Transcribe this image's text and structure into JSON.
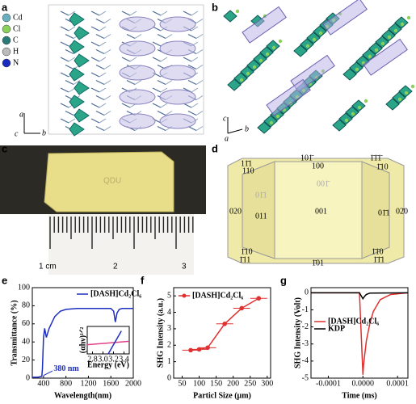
{
  "panel_labels": [
    "a",
    "b",
    "c",
    "d",
    "e",
    "f",
    "g"
  ],
  "legend_a": [
    "Cd",
    "Cl",
    "C",
    "H",
    "N"
  ],
  "axes_a": [
    "a",
    "c",
    "b"
  ],
  "axes_b": [
    "c",
    "a",
    "b"
  ],
  "photo": {
    "stamp": "QDU",
    "ruler": [
      "1 cm",
      "2",
      "3"
    ]
  },
  "faces": [
    "11̄1",
    "110",
    "101̄",
    "100",
    "1̄1̄1̄",
    "1̄10",
    "01̄1",
    "001̄",
    "020",
    "011",
    "001",
    "01̄1",
    "02̄0",
    "1̄10",
    "1̄11",
    "1̄01",
    "1̄1̄0",
    "1̄1̄1"
  ],
  "chart_data": [
    {
      "type": "line",
      "xlabel": "Wavelength(nm)",
      "ylabel": "Transmittance (%)",
      "annotation": "380 nm",
      "xlim": [
        200,
        2000
      ],
      "xticks": [
        400,
        800,
        1200,
        1600,
        2000
      ],
      "ylim": [
        0,
        100
      ],
      "yticks": [
        0,
        20,
        40,
        60,
        80,
        100
      ],
      "legend": "upper right",
      "series": [
        {
          "name": "[DASH]Cd₂Cl₆",
          "color": "#1f2fbf",
          "x": [
            200,
            300,
            370,
            380,
            400,
            420,
            450,
            500,
            600,
            700,
            800,
            1000,
            1200,
            1400,
            1600,
            1650,
            1680,
            1710,
            1750,
            1800,
            2000
          ],
          "values": [
            1,
            1,
            2,
            10,
            45,
            55,
            45,
            55,
            68,
            74,
            76,
            77,
            77,
            77,
            77,
            74,
            62,
            72,
            76,
            77,
            77
          ]
        }
      ]
    },
    {
      "type": "line",
      "xlabel": "Energy (eV)",
      "ylabel": "(αhν)¹ᐟ²",
      "xlim": [
        2.7,
        3.5
      ],
      "xticks": [
        2.8,
        {
          "value": 3.0,
          "label": "3.0"
        },
        3.2,
        3.4
      ],
      "ylim": [
        0,
        1.2
      ],
      "yticks": [],
      "series": [
        {
          "color": "#e0408a",
          "x": [
            2.7,
            3.5
          ],
          "values": [
            0.4,
            0.55
          ]
        },
        {
          "color": "#1f2fbf",
          "x": [
            3.1,
            3.35
          ],
          "values": [
            0,
            1
          ]
        }
      ]
    },
    {
      "type": "errorbar",
      "xlabel": "Particl Size (μm)",
      "ylabel": "SHG Intensity (a.u.)",
      "xlim": [
        25,
        310
      ],
      "xticks": [
        50,
        100,
        150,
        200,
        250,
        300
      ],
      "ylim": [
        0,
        5.5
      ],
      "yticks": [
        0,
        1,
        2,
        3,
        4,
        5
      ],
      "legend": "upper left",
      "series": [
        {
          "name": "[DASH]Cd₂Cl₆",
          "color": "#e03030",
          "x": [
            75,
            100,
            125,
            175,
            225,
            275
          ],
          "values": [
            1.7,
            1.75,
            1.85,
            3.3,
            4.25,
            4.85
          ],
          "xerr": [
            25,
            25,
            25,
            25,
            25,
            25
          ]
        }
      ]
    },
    {
      "type": "line",
      "xlabel": "Time (ms)",
      "ylabel": "SHG Intensity (Volt)",
      "xlim": [
        -0.00015,
        0.00013
      ],
      "xticks": [
        {
          "value": -0.0001,
          "label": "-0.0001"
        },
        {
          "value": 0,
          "label": "0.0000"
        },
        {
          "value": 0.0001,
          "label": "0.0001"
        }
      ],
      "ylim": [
        -5,
        0.3
      ],
      "yticks": [
        0,
        -1,
        -2,
        -3,
        -4,
        -5
      ],
      "legend": "center left",
      "series": [
        {
          "name": "[DASH]Cd₂Cl₆",
          "color": "#e03030",
          "x": [
            -0.00015,
            -1e-05,
            0,
            2e-06,
            1e-05,
            2e-05,
            3e-05,
            5e-05,
            8e-05,
            0.00013
          ],
          "values": [
            0,
            0,
            -4.8,
            -4.2,
            -2.8,
            -1.8,
            -1.1,
            -0.4,
            -0.1,
            0
          ]
        },
        {
          "name": "KDP",
          "color": "#000000",
          "x": [
            -0.00015,
            -1e-05,
            0,
            5e-06,
            1e-05,
            2e-05,
            0.00013
          ],
          "values": [
            0,
            0,
            -0.35,
            -0.2,
            -0.1,
            -0.02,
            0
          ]
        }
      ]
    }
  ]
}
